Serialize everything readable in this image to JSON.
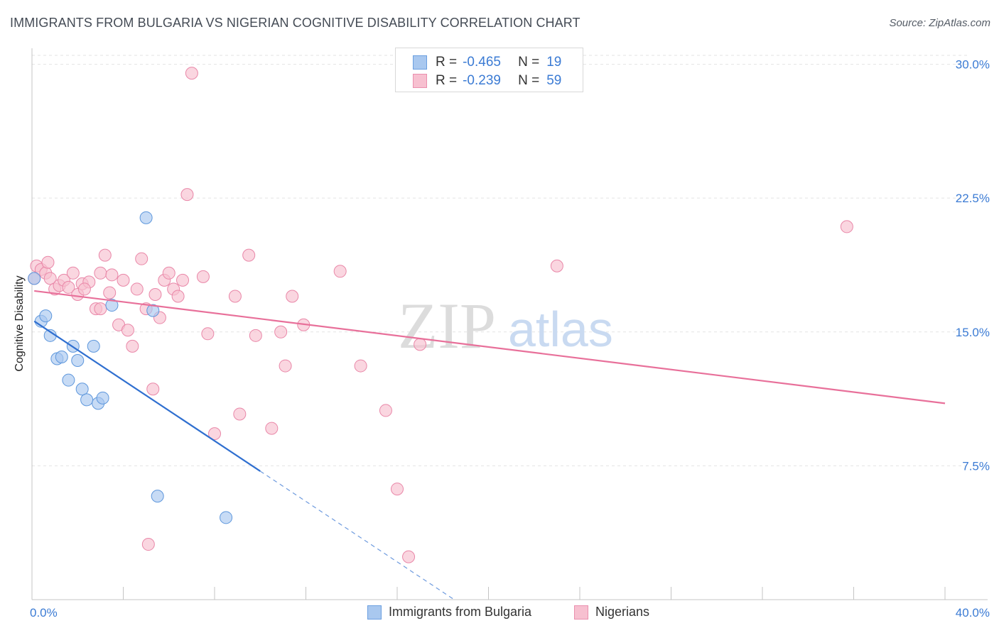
{
  "header": {
    "title": "IMMIGRANTS FROM BULGARIA VS NIGERIAN COGNITIVE DISABILITY CORRELATION CHART",
    "source": "Source: ZipAtlas.com"
  },
  "watermark": {
    "zip": "ZIP",
    "atlas": "atlas"
  },
  "legend": {
    "rows": [
      {
        "r_label": "R =",
        "r_value": "-0.465",
        "n_label": "N =",
        "n_value": "19",
        "color": "#a9c8ef",
        "border": "#6b9fe0"
      },
      {
        "r_label": "R =",
        "r_value": "-0.239",
        "n_label": "N =",
        "n_value": "59",
        "color": "#f7c0d0",
        "border": "#ea8fae"
      }
    ]
  },
  "colors": {
    "blue_fill": "#a9c8ef",
    "blue_stroke": "#5e97dc",
    "blue_line": "#2f6fd0",
    "pink_fill": "#f7c0d0",
    "pink_stroke": "#e987a8",
    "pink_line": "#e8709a",
    "grid": "#e3e3e3",
    "tick_label": "#3b7bd4"
  },
  "chart_data": {
    "type": "scatter",
    "title": "IMMIGRANTS FROM BULGARIA VS NIGERIAN COGNITIVE DISABILITY CORRELATION CHART",
    "xlabel": "",
    "ylabel": "Cognitive Disability",
    "xlim": [
      0,
      40
    ],
    "ylim": [
      0,
      30.5
    ],
    "x_tick_labels": [
      "0.0%",
      "40.0%"
    ],
    "y_ticks": [
      7.5,
      15.0,
      22.5,
      30.0
    ],
    "y_tick_labels": [
      "7.5%",
      "15.0%",
      "22.5%",
      "30.0%"
    ],
    "grid": "horizontal dashed",
    "legend_position": "bottom",
    "series": [
      {
        "name": "Immigrants from Bulgaria",
        "r": -0.465,
        "n": 19,
        "points": [
          [
            0.1,
            18.0
          ],
          [
            0.4,
            15.6
          ],
          [
            0.6,
            15.9
          ],
          [
            0.8,
            14.8
          ],
          [
            1.1,
            13.5
          ],
          [
            1.3,
            13.6
          ],
          [
            1.6,
            12.3
          ],
          [
            1.8,
            14.2
          ],
          [
            2.0,
            13.4
          ],
          [
            2.2,
            11.8
          ],
          [
            2.4,
            11.2
          ],
          [
            2.7,
            14.2
          ],
          [
            2.9,
            11.0
          ],
          [
            3.1,
            11.3
          ],
          [
            3.5,
            16.5
          ],
          [
            5.0,
            21.4
          ],
          [
            5.3,
            16.2
          ],
          [
            5.5,
            5.8
          ],
          [
            8.5,
            4.6
          ]
        ],
        "trend": {
          "x": [
            0.1,
            10.0
          ],
          "y": [
            15.6,
            7.2
          ]
        },
        "trend_extension": {
          "x": [
            10.0,
            18.5
          ],
          "y": [
            7.2,
            0.0
          ]
        }
      },
      {
        "name": "Nigerians",
        "r": -0.239,
        "n": 59,
        "points": [
          [
            0.1,
            18.0
          ],
          [
            0.2,
            18.7
          ],
          [
            0.4,
            18.5
          ],
          [
            0.6,
            18.3
          ],
          [
            0.7,
            18.9
          ],
          [
            0.8,
            18.0
          ],
          [
            1.0,
            17.4
          ],
          [
            1.2,
            17.6
          ],
          [
            1.4,
            17.9
          ],
          [
            1.6,
            17.5
          ],
          [
            1.8,
            18.3
          ],
          [
            2.0,
            17.1
          ],
          [
            2.2,
            17.7
          ],
          [
            2.5,
            17.8
          ],
          [
            2.8,
            16.3
          ],
          [
            3.0,
            18.3
          ],
          [
            3.2,
            19.3
          ],
          [
            3.4,
            17.2
          ],
          [
            3.5,
            18.2
          ],
          [
            3.8,
            15.4
          ],
          [
            4.0,
            17.9
          ],
          [
            4.2,
            15.1
          ],
          [
            4.4,
            14.2
          ],
          [
            4.6,
            17.4
          ],
          [
            4.8,
            19.1
          ],
          [
            5.0,
            16.3
          ],
          [
            5.3,
            11.8
          ],
          [
            5.4,
            17.1
          ],
          [
            5.6,
            15.8
          ],
          [
            5.8,
            17.9
          ],
          [
            6.0,
            18.3
          ],
          [
            6.2,
            17.4
          ],
          [
            6.4,
            17.0
          ],
          [
            6.6,
            17.9
          ],
          [
            6.8,
            22.7
          ],
          [
            7.0,
            29.5
          ],
          [
            7.5,
            18.1
          ],
          [
            7.7,
            14.9
          ],
          [
            8.0,
            9.3
          ],
          [
            8.9,
            17.0
          ],
          [
            9.1,
            10.4
          ],
          [
            9.5,
            19.3
          ],
          [
            9.8,
            14.8
          ],
          [
            10.5,
            9.6
          ],
          [
            10.9,
            15.0
          ],
          [
            11.1,
            13.1
          ],
          [
            11.4,
            17.0
          ],
          [
            11.9,
            15.4
          ],
          [
            13.5,
            18.4
          ],
          [
            14.4,
            13.1
          ],
          [
            15.5,
            10.6
          ],
          [
            16.0,
            6.2
          ],
          [
            16.5,
            2.4
          ],
          [
            17.0,
            14.3
          ],
          [
            23.0,
            18.7
          ],
          [
            35.7,
            20.9
          ],
          [
            5.1,
            3.1
          ],
          [
            3.0,
            16.3
          ],
          [
            2.3,
            17.4
          ]
        ],
        "trend": {
          "x": [
            0.1,
            40.0
          ],
          "y": [
            17.3,
            11.0
          ]
        }
      }
    ]
  }
}
